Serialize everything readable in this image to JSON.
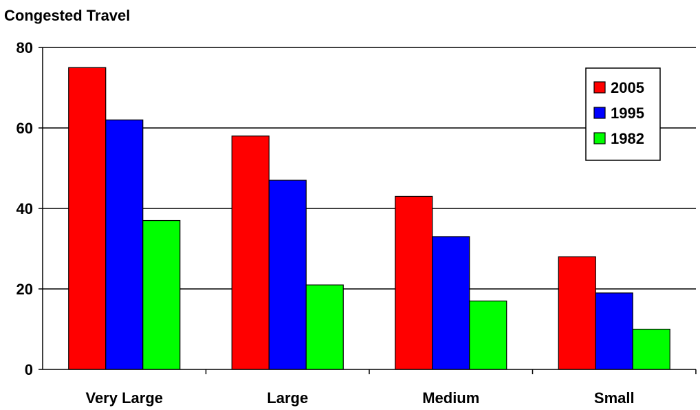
{
  "chart_data": {
    "type": "bar",
    "title": "Congested Travel",
    "xlabel": "",
    "ylabel": "",
    "categories": [
      "Very Large",
      "Large",
      "Medium",
      "Small"
    ],
    "series": [
      {
        "name": "2005",
        "color": "#ff0000",
        "values": [
          75,
          58,
          43,
          28
        ]
      },
      {
        "name": "1995",
        "color": "#0000ff",
        "values": [
          62,
          47,
          33,
          19
        ]
      },
      {
        "name": "1982",
        "color": "#00ff00",
        "values": [
          37,
          21,
          17,
          10
        ]
      }
    ],
    "ylim": [
      0,
      80
    ],
    "yticks": [
      0,
      20,
      40,
      60,
      80
    ],
    "grid": true,
    "legend_position": "top-right"
  }
}
